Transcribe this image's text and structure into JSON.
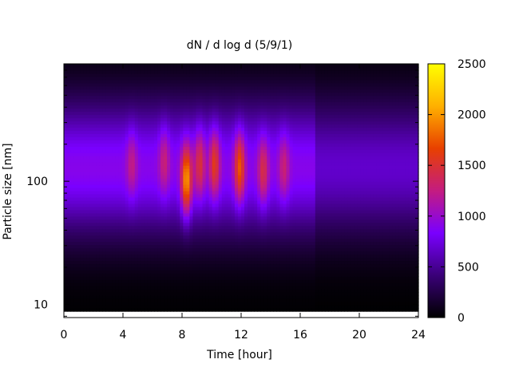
{
  "chart_data": {
    "type": "heatmap",
    "title": "dN / d log d (5/9/1)",
    "xlabel": "Time [hour]",
    "ylabel": "Particle size [nm]",
    "xlim": [
      0,
      24
    ],
    "x_ticks": [
      0,
      4,
      8,
      12,
      16,
      20,
      24
    ],
    "x_tick_labels": [
      "0",
      "4",
      "8",
      "12",
      "16",
      "20",
      "24"
    ],
    "y_scale": "log",
    "ylim": [
      7.8,
      900
    ],
    "y_ticks": [
      10,
      100
    ],
    "y_tick_labels": [
      "10",
      "100"
    ],
    "colorbar": {
      "min": 0,
      "max": 2500,
      "ticks": [
        0,
        500,
        1000,
        1500,
        2000,
        2500
      ],
      "tick_labels": [
        "0",
        "500",
        "1000",
        "1500",
        "2000",
        "2500"
      ],
      "palette": [
        "#000000",
        "#3a0078",
        "#7a00ff",
        "#c41c80",
        "#e84000",
        "#ffb000",
        "#ffff00"
      ]
    },
    "grid": false,
    "background_size_distribution": {
      "peak_diameter_nm": 130,
      "peak_value": 900,
      "lower_size_limit_nm": 9
    },
    "intense_events": [
      {
        "time_hour": 4.6,
        "peak_diameter_nm": 140,
        "value": 1250
      },
      {
        "time_hour": 6.8,
        "peak_diameter_nm": 150,
        "value": 1300
      },
      {
        "time_hour": 8.3,
        "peak_diameter_nm": 100,
        "value": 2050
      },
      {
        "time_hour": 9.2,
        "peak_diameter_nm": 140,
        "value": 1500
      },
      {
        "time_hour": 10.2,
        "peak_diameter_nm": 140,
        "value": 1600
      },
      {
        "time_hour": 11.9,
        "peak_diameter_nm": 130,
        "value": 1750
      },
      {
        "time_hour": 13.5,
        "peak_diameter_nm": 120,
        "value": 1450
      },
      {
        "time_hour": 14.9,
        "peak_diameter_nm": 130,
        "value": 1300
      }
    ]
  }
}
